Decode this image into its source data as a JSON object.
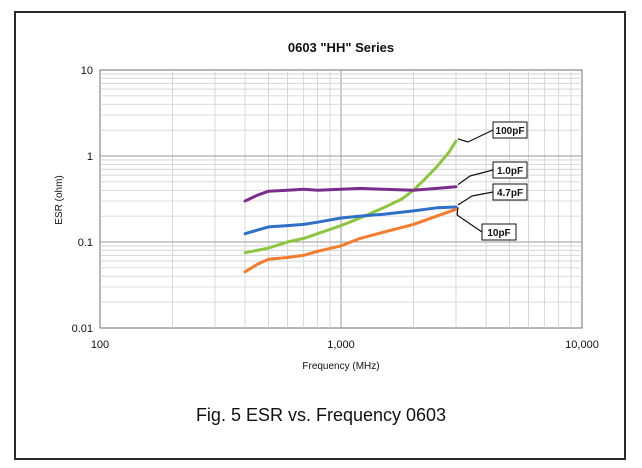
{
  "caption": "Fig. 5 ESR vs. Frequency 0603",
  "chart_data": {
    "type": "line",
    "title": "0603 \"HH\" Series",
    "xlabel": "Frequency (MHz)",
    "ylabel": "ESR (ohm)",
    "x_scale": "log",
    "y_scale": "log",
    "xlim": [
      100,
      10000
    ],
    "ylim": [
      0.01,
      10
    ],
    "x_ticks": [
      {
        "value": 100,
        "label": "100"
      },
      {
        "value": 1000,
        "label": "1,000"
      },
      {
        "value": 10000,
        "label": "10,000"
      }
    ],
    "y_ticks": [
      {
        "value": 10,
        "label": "10"
      },
      {
        "value": 1,
        "label": "1"
      },
      {
        "value": 0.1,
        "label": "0.1"
      },
      {
        "value": 0.01,
        "label": "0.01"
      }
    ],
    "grid": true,
    "series": [
      {
        "name": "100pF",
        "color": "#8cc63f",
        "x": [
          400,
          500,
          600,
          700,
          800,
          1000,
          1200,
          1500,
          1800,
          2000,
          2200,
          2500,
          2800,
          3000
        ],
        "y": [
          0.075,
          0.085,
          0.1,
          0.11,
          0.125,
          0.155,
          0.19,
          0.25,
          0.32,
          0.4,
          0.52,
          0.75,
          1.1,
          1.5
        ]
      },
      {
        "name": "1.0pF",
        "color": "#7b2d8e",
        "x": [
          400,
          450,
          500,
          600,
          700,
          800,
          1000,
          1200,
          1500,
          2000,
          2500,
          3000
        ],
        "y": [
          0.3,
          0.35,
          0.39,
          0.4,
          0.41,
          0.4,
          0.41,
          0.42,
          0.41,
          0.4,
          0.42,
          0.44
        ]
      },
      {
        "name": "4.7pF",
        "color": "#2e6fc9",
        "x": [
          400,
          500,
          600,
          700,
          800,
          1000,
          1200,
          1500,
          2000,
          2500,
          3000
        ],
        "y": [
          0.125,
          0.15,
          0.155,
          0.16,
          0.17,
          0.19,
          0.2,
          0.21,
          0.23,
          0.25,
          0.255
        ]
      },
      {
        "name": "10pF",
        "color": "#f57c2c",
        "x": [
          400,
          450,
          500,
          600,
          700,
          800,
          1000,
          1200,
          1500,
          2000,
          2500,
          3000
        ],
        "y": [
          0.045,
          0.055,
          0.063,
          0.066,
          0.07,
          0.078,
          0.09,
          0.11,
          0.13,
          0.16,
          0.2,
          0.24
        ]
      }
    ],
    "callouts": [
      {
        "label": "100pF",
        "x": 3000,
        "y": 1.5
      },
      {
        "label": "1.0pF",
        "x": 3000,
        "y": 0.44
      },
      {
        "label": "4.7pF",
        "x": 3000,
        "y": 0.255
      },
      {
        "label": "10pF",
        "x": 3000,
        "y": 0.24
      }
    ]
  }
}
